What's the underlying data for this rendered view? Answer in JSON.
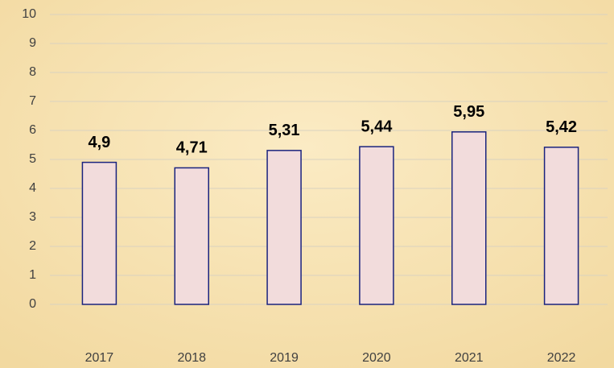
{
  "chart_data": {
    "type": "bar",
    "categories": [
      "2017",
      "2018",
      "2019",
      "2020",
      "2021",
      "2022"
    ],
    "values": [
      4.9,
      4.71,
      5.31,
      5.44,
      5.95,
      5.42
    ],
    "value_labels": [
      "4,9",
      "4,71",
      "5,31",
      "5,44",
      "5,95",
      "5,42"
    ],
    "color": "#f2dcdc",
    "edge_color": "#1a237e",
    "ylim": [
      0,
      10
    ],
    "yticks": [
      0,
      1,
      2,
      3,
      4,
      5,
      6,
      7,
      8,
      9,
      10
    ],
    "grid": true
  }
}
